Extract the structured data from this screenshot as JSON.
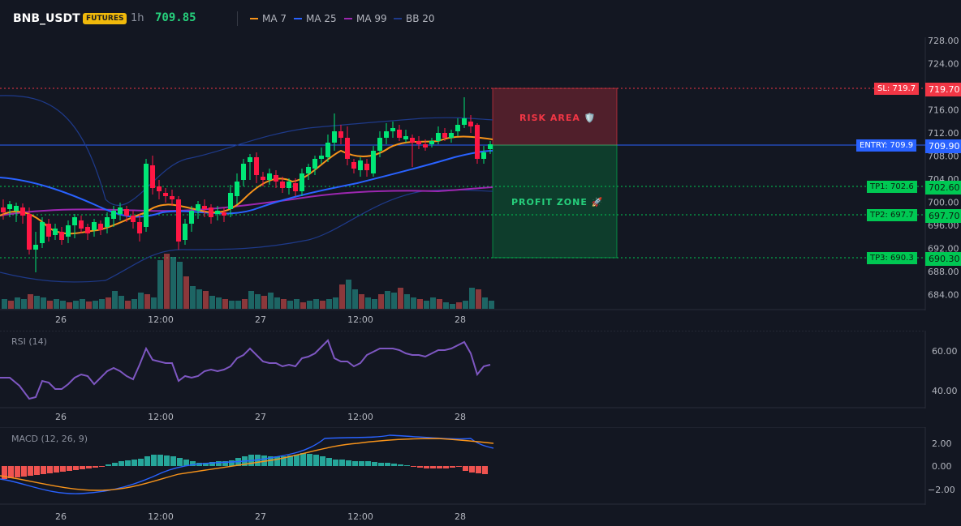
{
  "header": {
    "symbol": "BNB_USDT",
    "badge": "FUTURES",
    "interval": "1h",
    "price": "709.85",
    "legend": [
      {
        "label": "MA 7",
        "color": "#f7931a"
      },
      {
        "label": "MA 25",
        "color": "#2962ff"
      },
      {
        "label": "MA 99",
        "color": "#9c27b0"
      },
      {
        "label": "BB 20",
        "color": "#1e3a8a"
      }
    ]
  },
  "main": {
    "price_axis": [
      "728.00",
      "724.00",
      "720.00",
      "716.00",
      "712.00",
      "708.00",
      "704.00",
      "700.00",
      "696.00",
      "692.00",
      "688.00",
      "684.00"
    ],
    "time_axis": [
      "26",
      "12:00",
      "27",
      "12:00",
      "28"
    ],
    "levels": {
      "sl": {
        "label": "SL: 719.7",
        "value": "719.70",
        "color": "#f23645"
      },
      "entry": {
        "label": "ENTRY: 709.9",
        "value": "709.90",
        "color": "#2962ff"
      },
      "tp1": {
        "label": "TP1: 702.6",
        "value": "702.60",
        "color": "#00c853"
      },
      "tp2": {
        "label": "TP2: 697.7",
        "value": "697.70",
        "color": "#00c853"
      },
      "tp3": {
        "label": "TP3: 690.3",
        "value": "690.30",
        "color": "#00c853"
      }
    },
    "risk_label": "RISK AREA 🛡️",
    "profit_label": "PROFIT ZONE 🚀",
    "colors": {
      "up": "#26a69a",
      "down": "#ef5350",
      "upBright": "#00e676",
      "downBright": "#ff1744"
    }
  },
  "rsi": {
    "title": "RSI (14)",
    "axis": [
      "60.00",
      "40.00"
    ],
    "time_axis": [
      "26",
      "12:00",
      "27",
      "12:00",
      "28"
    ],
    "line_color": "#7e57c2"
  },
  "macd": {
    "title": "MACD (12, 26, 9)",
    "axis": [
      "2.00",
      "0.00",
      "−2.00"
    ],
    "time_axis": [
      "26",
      "12:00",
      "27",
      "12:00",
      "28"
    ]
  }
}
